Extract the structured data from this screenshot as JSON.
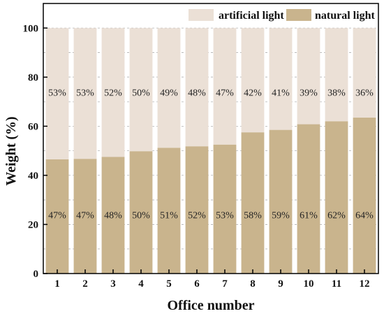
{
  "chart_data": {
    "type": "bar",
    "stacked": true,
    "percent": true,
    "xlabel": "Office number",
    "ylabel": "Weight (%)",
    "categories": [
      "1",
      "2",
      "3",
      "4",
      "5",
      "6",
      "7",
      "8",
      "9",
      "10",
      "11",
      "12"
    ],
    "series": [
      {
        "name": "natural light",
        "values": [
          47,
          47,
          48,
          50,
          51,
          52,
          53,
          58,
          59,
          61,
          62,
          64
        ],
        "labels": [
          "47%",
          "47%",
          "48%",
          "50%",
          "51%",
          "52%",
          "53%",
          "58%",
          "59%",
          "61%",
          "62%",
          "64%"
        ],
        "color": "#c9b48d"
      },
      {
        "name": "artificial light",
        "values": [
          53,
          53,
          52,
          50,
          49,
          48,
          47,
          42,
          41,
          39,
          38,
          36
        ],
        "labels": [
          "53%",
          "53%",
          "52%",
          "50%",
          "49%",
          "48%",
          "47%",
          "42%",
          "41%",
          "39%",
          "38%",
          "36%"
        ],
        "color": "#ebe0d6"
      }
    ],
    "natural_heights": [
      46.5,
      46.7,
      47.5,
      49.8,
      51.2,
      51.8,
      52.5,
      57.5,
      58.5,
      60.8,
      62.0,
      63.5
    ],
    "yticks": [
      0,
      20,
      40,
      60,
      80,
      100
    ],
    "ylim": [
      0,
      110
    ],
    "grid": true,
    "legend_position": "top-right",
    "colors": {
      "grid": "#b0b0b0",
      "axis": "#000000"
    }
  }
}
